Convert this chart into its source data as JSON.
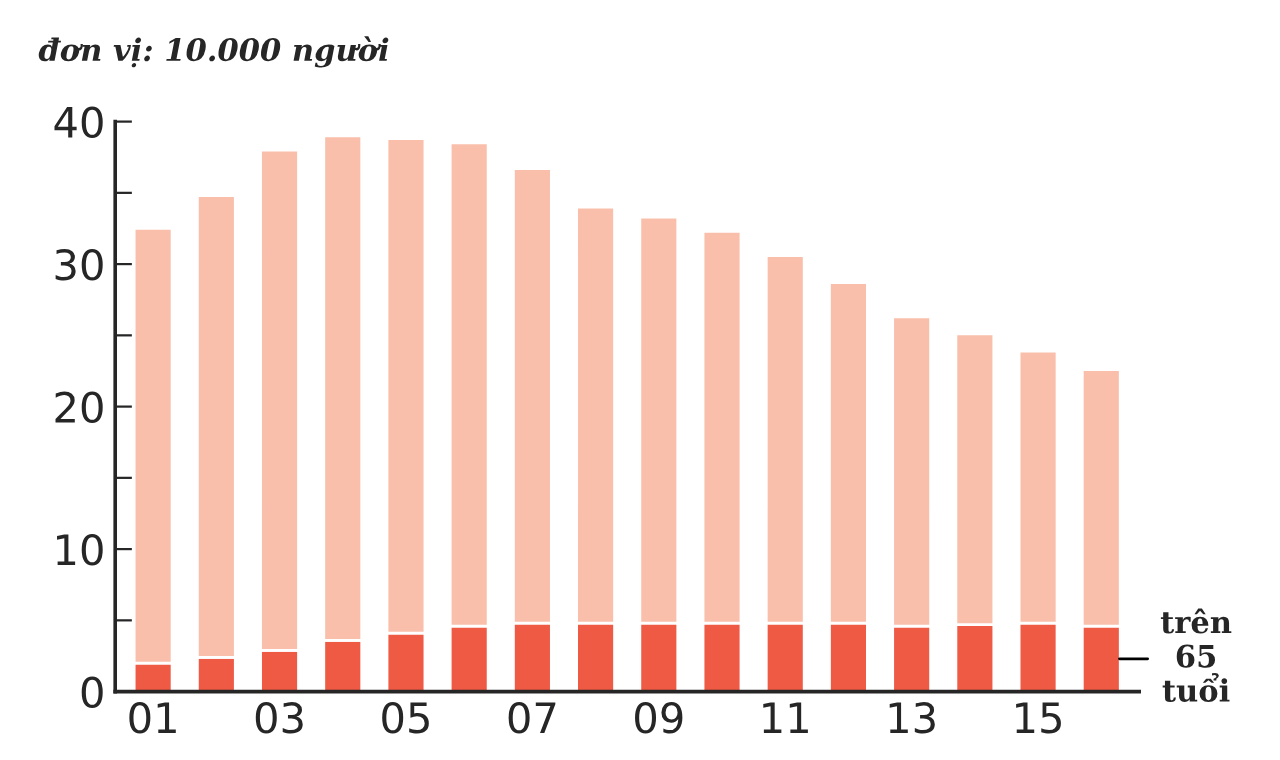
{
  "chart_data": {
    "type": "bar",
    "title": "đơn vị: 10.000 người",
    "stacked": true,
    "categories": [
      "01",
      null,
      "03",
      null,
      "05",
      null,
      "07",
      null,
      "09",
      null,
      "11",
      null,
      "13",
      null,
      "15",
      null
    ],
    "series": [
      {
        "name": "trên 65 tuổi",
        "color": "#ef5a45",
        "values": [
          2,
          2.4,
          2.9,
          3.6,
          4.1,
          4.6,
          4.8,
          4.8,
          4.8,
          4.8,
          4.8,
          4.8,
          4.6,
          4.7,
          4.8,
          4.6
        ]
      },
      {
        "color": "#f9bfaa",
        "values": [
          30.5,
          32.4,
          35.1,
          35.4,
          34.7,
          33.9,
          31.9,
          29.2,
          28.5,
          27.5,
          25.8,
          23.9,
          21.7,
          20.4,
          19.1,
          18.0
        ]
      }
    ],
    "ylim": [
      0,
      40
    ],
    "yticks": [
      0,
      {
        "value": 5,
        "label": null
      },
      10,
      {
        "value": 15,
        "label": null
      },
      20,
      {
        "value": 25,
        "label": null
      },
      30,
      {
        "value": 35,
        "label": null
      },
      40
    ],
    "grid": false,
    "legend": false
  }
}
